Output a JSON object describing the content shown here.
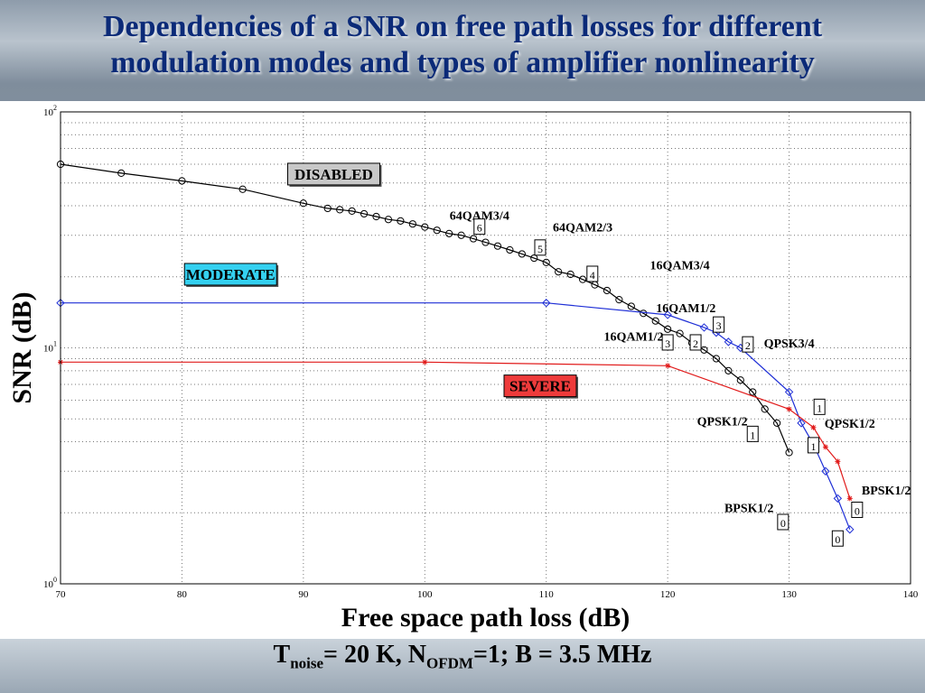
{
  "slide": {
    "title_line1": "Dependencies of a SNR on free path losses for different",
    "title_line2": "modulation modes and types of amplifier nonlinearity",
    "footer": {
      "t": "T",
      "t_sub": "noise",
      "t_val": "= 20 K, N",
      "n_sub": "OFDM",
      "rest": "=1; B = 3.5 MHz"
    }
  },
  "chart_data": {
    "type": "line",
    "xlabel": "Free space path loss (dB)",
    "ylabel": "SNR (dB)",
    "xlim": [
      70,
      140
    ],
    "ylim": [
      1,
      100
    ],
    "yscale": "log",
    "x_ticks": [
      "70",
      "80",
      "90",
      "100",
      "110",
      "120",
      "130",
      "140"
    ],
    "y_ticks": [
      {
        "base": "10",
        "exp": "0",
        "value": 1
      },
      {
        "base": "10",
        "exp": "1",
        "value": 10
      },
      {
        "base": "10",
        "exp": "2",
        "value": 100
      }
    ],
    "grid": true,
    "series": [
      {
        "name": "DISABLED",
        "color": "#000000",
        "marker": "circle",
        "x": [
          70,
          75,
          80,
          85,
          90,
          92,
          93,
          94,
          95,
          96,
          97,
          98,
          99,
          100,
          101,
          102,
          103,
          104,
          105,
          106,
          107,
          108,
          109,
          110,
          111,
          112,
          113,
          114,
          115,
          116,
          117,
          118,
          119,
          120,
          121,
          122,
          123,
          124,
          125,
          126,
          127,
          128,
          129,
          130
        ],
        "y": [
          60,
          55,
          51,
          47,
          41,
          39,
          38.5,
          38,
          37,
          36,
          35,
          34.5,
          33.5,
          32.5,
          31.5,
          30.5,
          30,
          29,
          28,
          27,
          26,
          25,
          24,
          23,
          21,
          20.5,
          19.5,
          18.5,
          17.5,
          16,
          15,
          14,
          13,
          12,
          11.5,
          10.5,
          9.8,
          9,
          8,
          7.3,
          6.5,
          5.5,
          4.8,
          3.6
        ]
      },
      {
        "name": "MODERATE",
        "color": "#1f2fd6",
        "marker": "diamond",
        "x": [
          70,
          110,
          120,
          123,
          124,
          125,
          126,
          130,
          131,
          132,
          133,
          134,
          135
        ],
        "y": [
          15.5,
          15.5,
          13.8,
          12.2,
          11.6,
          10.6,
          10,
          6.5,
          4.8,
          3.9,
          3.0,
          2.3,
          1.7
        ]
      },
      {
        "name": "SEVERE",
        "color": "#e11b1b",
        "marker": "star",
        "x": [
          70,
          100,
          120,
          130,
          132,
          133,
          134,
          135
        ],
        "y": [
          8.7,
          8.7,
          8.4,
          5.5,
          4.6,
          3.8,
          3.3,
          2.3
        ]
      }
    ],
    "annotations": [
      {
        "text": "DISABLED",
        "kind": "box",
        "box_color": "#c8c8c8",
        "x": 92.5,
        "y": 54.5
      },
      {
        "text": "MODERATE",
        "kind": "box",
        "box_color": "#34d0f0",
        "x": 84.0,
        "y": 20.5
      },
      {
        "text": "SEVERE",
        "kind": "box",
        "box_color": "#ee3b3b",
        "x": 109.5,
        "y": 6.9
      },
      {
        "text": "64QAM3/4",
        "kind": "label",
        "x": 104.5,
        "y": 36.5
      },
      {
        "text": "6",
        "kind": "num",
        "x": 104.5,
        "y": 32.5
      },
      {
        "text": "64QAM2/3",
        "kind": "label",
        "x": 113.0,
        "y": 32.5
      },
      {
        "text": "5",
        "kind": "num",
        "x": 109.5,
        "y": 26.5
      },
      {
        "text": "4",
        "kind": "num",
        "x": 113.8,
        "y": 20.5
      },
      {
        "text": "16QAM3/4",
        "kind": "label",
        "x": 121.0,
        "y": 22.5
      },
      {
        "text": "16QAM1/2",
        "kind": "label",
        "x": 121.5,
        "y": 14.8
      },
      {
        "text": "3",
        "kind": "num",
        "x": 124.2,
        "y": 12.5
      },
      {
        "text": "16QAM1/2",
        "kind": "label",
        "x": 117.2,
        "y": 11.2
      },
      {
        "text": "3",
        "kind": "num",
        "x": 120.0,
        "y": 10.5
      },
      {
        "text": "2",
        "kind": "num",
        "x": 122.3,
        "y": 10.5
      },
      {
        "text": "2",
        "kind": "num",
        "x": 126.6,
        "y": 10.3
      },
      {
        "text": "QPSK3/4",
        "kind": "label",
        "x": 130.0,
        "y": 10.5
      },
      {
        "text": "1",
        "kind": "num",
        "x": 132.5,
        "y": 5.6
      },
      {
        "text": "QPSK1/2",
        "kind": "label",
        "x": 135.0,
        "y": 4.8
      },
      {
        "text": "QPSK1/2",
        "kind": "label",
        "x": 124.5,
        "y": 4.9
      },
      {
        "text": "1",
        "kind": "num",
        "x": 127.0,
        "y": 4.3
      },
      {
        "text": "1",
        "kind": "num",
        "x": 132.0,
        "y": 3.85
      },
      {
        "text": "BPSK1/2",
        "kind": "label",
        "x": 138.0,
        "y": 2.5
      },
      {
        "text": "0",
        "kind": "num",
        "x": 135.6,
        "y": 2.05
      },
      {
        "text": "BPSK1/2",
        "kind": "label",
        "x": 126.7,
        "y": 2.1
      },
      {
        "text": "0",
        "kind": "num",
        "x": 129.5,
        "y": 1.82
      },
      {
        "text": "0",
        "kind": "num",
        "x": 134.0,
        "y": 1.55
      }
    ]
  }
}
